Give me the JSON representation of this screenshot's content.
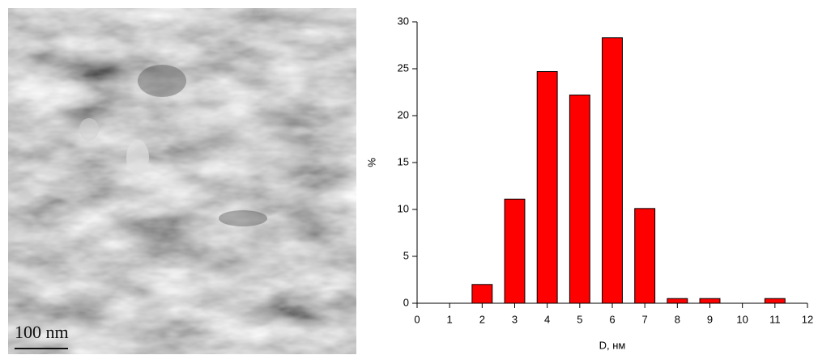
{
  "image": {
    "scale_label": "100 nm"
  },
  "chart_data": {
    "type": "bar",
    "x_label": "D, нм",
    "y_label": "%",
    "x": [
      2,
      3,
      4,
      5,
      6,
      7,
      8,
      9,
      11
    ],
    "values": [
      2,
      11.1,
      24.7,
      22.2,
      28.3,
      10.1,
      0.5,
      0.5,
      0.5
    ],
    "color": "#ff0000",
    "xlim": [
      0,
      12
    ],
    "xticks": [
      0,
      1,
      2,
      3,
      4,
      5,
      6,
      7,
      8,
      9,
      10,
      11,
      12
    ],
    "ylim": [
      0,
      30
    ],
    "yticks": [
      0,
      5,
      10,
      15,
      20,
      25,
      30
    ],
    "grid": false
  }
}
